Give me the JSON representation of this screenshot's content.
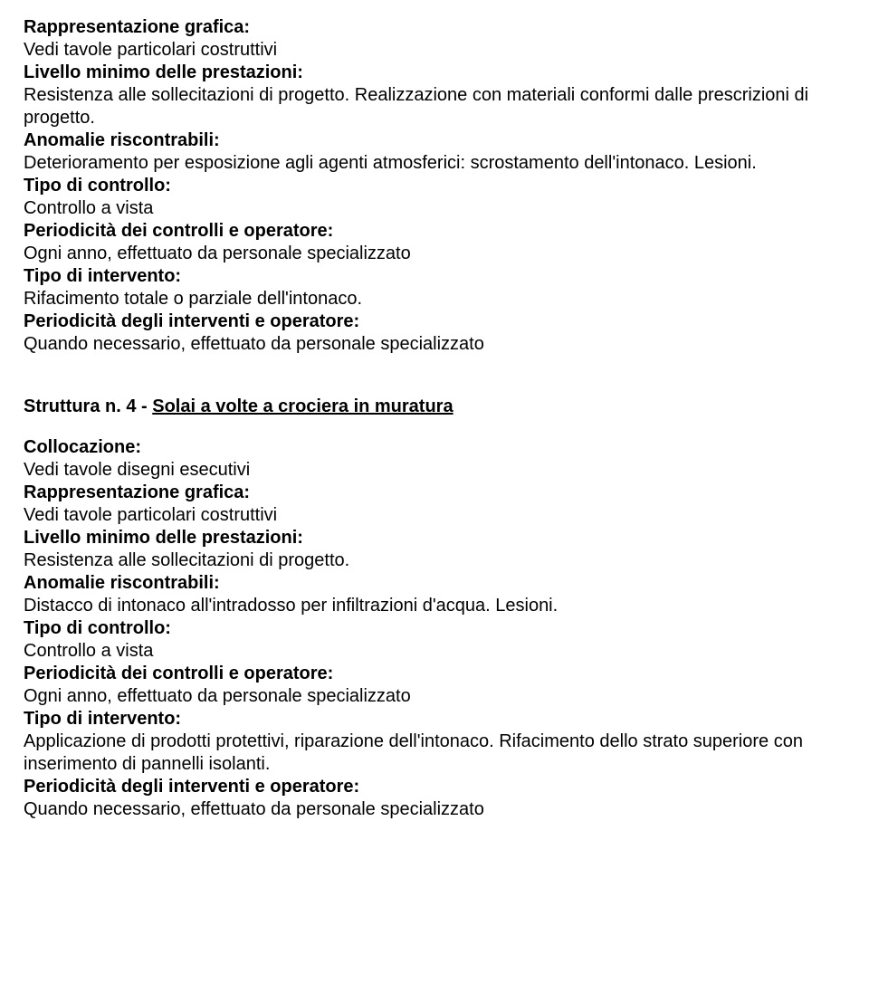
{
  "struttura3": {
    "labels": {
      "rappresentazione": "Rappresentazione grafica:",
      "livello": "Livello minimo delle prestazioni:",
      "anomalie": "Anomalie riscontrabili:",
      "tipoControllo": "Tipo di controllo:",
      "periodicitaControlli": "Periodicità dei controlli e operatore:",
      "tipoIntervento": "Tipo di intervento:",
      "periodicitaInterventi": "Periodicità degli interventi e operatore:"
    },
    "values": {
      "rappresentazione": "Vedi tavole particolari costruttivi",
      "livello": "Resistenza alle sollecitazioni di progetto. Realizzazione con materiali conformi dalle prescrizioni di progetto.",
      "anomalie": "Deterioramento per esposizione agli agenti atmosferici: scrostamento dell'intonaco. Lesioni.",
      "tipoControllo": "Controllo a vista",
      "periodicitaControlli": "Ogni anno, effettuato da personale specializzato",
      "tipoIntervento": "Rifacimento totale o parziale dell'intonaco.",
      "periodicitaInterventi": "Quando necessario, effettuato da personale specializzato"
    }
  },
  "struttura4": {
    "titlePrefix": "Struttura n. 4 - ",
    "titleUnderlined": "Solai a volte a crociera in muratura",
    "labels": {
      "collocazione": "Collocazione:",
      "rappresentazione": "Rappresentazione grafica:",
      "livello": "Livello minimo delle prestazioni:",
      "anomalie": "Anomalie riscontrabili:",
      "tipoControllo": "Tipo di controllo:",
      "periodicitaControlli": "Periodicità dei controlli e operatore:",
      "tipoIntervento": "Tipo di intervento:",
      "periodicitaInterventi": "Periodicità degli interventi e operatore:"
    },
    "values": {
      "collocazione": "Vedi tavole disegni esecutivi",
      "rappresentazione": "Vedi tavole particolari costruttivi",
      "livello": "Resistenza alle sollecitazioni di progetto.",
      "anomalie": "Distacco di intonaco all'intradosso per infiltrazioni d'acqua. Lesioni.",
      "tipoControllo": "Controllo a vista",
      "periodicitaControlli": "Ogni anno, effettuato da personale specializzato",
      "tipoIntervento": "Applicazione di prodotti protettivi, riparazione dell'intonaco. Rifacimento dello strato superiore con inserimento di pannelli isolanti.",
      "periodicitaInterventi": "Quando necessario, effettuato da personale specializzato"
    }
  }
}
